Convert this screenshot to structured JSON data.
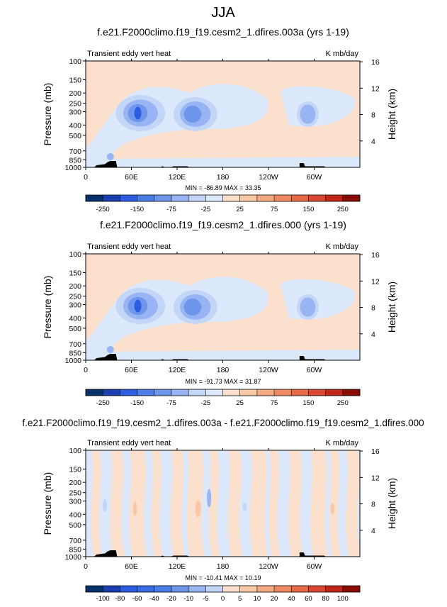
{
  "page_title": "JJA",
  "colors": {
    "blue_scale": [
      "#08306b",
      "#1a3fb0",
      "#2d5de0",
      "#4a7de6",
      "#6e97ec",
      "#98b4f2",
      "#c3d6f8",
      "#dce8fb"
    ],
    "red_scale": [
      "#fbe1cd",
      "#f9c8a6",
      "#f4aa82",
      "#ee8b62",
      "#e66a45",
      "#d94830",
      "#c02718",
      "#8a0c06"
    ],
    "topo": "#000000",
    "background_field": "#fbe1cd"
  },
  "chart_data": [
    {
      "type": "heatmap",
      "title": "f.e21.F2000climo.f19_f19.cesm2_1.dfires.003a (yrs 1-19)",
      "left_label": "Transient eddy vert heat",
      "right_label": "K mb/day",
      "ylabel": "Pressure (mb)",
      "y2label": "Height (km)",
      "x_ticks": [
        "0",
        "60E",
        "120E",
        "180",
        "120W",
        "60W"
      ],
      "y_ticks": [
        "100",
        "150",
        "200",
        "250",
        "300",
        "400",
        "500",
        "700",
        "850",
        "1000"
      ],
      "y2_ticks": [
        "16",
        "12",
        "8",
        "4"
      ],
      "stats": "MIN = -86.89   MAX = 33.35",
      "colorbar_labels": [
        "-250",
        "-150",
        "-75",
        "-25",
        "25",
        "75",
        "150",
        "250"
      ],
      "colorbar_colors": [
        "#08306b",
        "#1a3fb0",
        "#2d5de0",
        "#4a7de6",
        "#6e97ec",
        "#98b4f2",
        "#c3d6f8",
        "#dce8fb",
        "#fbe1cd",
        "#f9c8a6",
        "#f4aa82",
        "#ee8b62",
        "#e66a45",
        "#d94830",
        "#c02718",
        "#8a0c06"
      ]
    },
    {
      "type": "heatmap",
      "title": "f.e21.F2000climo.f19_f19.cesm2_1.dfires.000 (yrs 1-19)",
      "left_label": "Transient eddy vert heat",
      "right_label": "K mb/day",
      "ylabel": "Pressure (mb)",
      "y2label": "Height (km)",
      "x_ticks": [
        "0",
        "60E",
        "120E",
        "180",
        "120W",
        "60W"
      ],
      "y_ticks": [
        "100",
        "150",
        "200",
        "250",
        "300",
        "400",
        "500",
        "700",
        "850",
        "1000"
      ],
      "y2_ticks": [
        "16",
        "12",
        "8",
        "4"
      ],
      "stats": "MIN = -91.73   MAX = 31.87",
      "colorbar_labels": [
        "-250",
        "-150",
        "-75",
        "-25",
        "25",
        "75",
        "150",
        "250"
      ],
      "colorbar_colors": [
        "#08306b",
        "#1a3fb0",
        "#2d5de0",
        "#4a7de6",
        "#6e97ec",
        "#98b4f2",
        "#c3d6f8",
        "#dce8fb",
        "#fbe1cd",
        "#f9c8a6",
        "#f4aa82",
        "#ee8b62",
        "#e66a45",
        "#d94830",
        "#c02718",
        "#8a0c06"
      ]
    },
    {
      "type": "heatmap",
      "title": "f.e21.F2000climo.f19_f19.cesm2_1.dfires.003a - f.e21.F2000climo.f19_f19.cesm2_1.dfires.000",
      "left_label": "Transient eddy vert heat",
      "right_label": "K mb/day",
      "ylabel": "Pressure (mb)",
      "y2label": "Height (km)",
      "x_ticks": [
        "0",
        "60E",
        "120E",
        "180",
        "120W",
        "60W"
      ],
      "y_ticks": [
        "100",
        "150",
        "200",
        "250",
        "300",
        "400",
        "500",
        "700",
        "850",
        "1000"
      ],
      "y2_ticks": [
        "16",
        "12",
        "8",
        "4"
      ],
      "stats": "MIN = -10.41   MAX = 10.19",
      "colorbar_labels": [
        "-100",
        "-80",
        "-60",
        "-40",
        "-20",
        "-10",
        "-5",
        "0",
        "5",
        "10",
        "20",
        "40",
        "60",
        "80",
        "100"
      ],
      "colorbar_colors": [
        "#08306b",
        "#1a3fb0",
        "#2d5de0",
        "#3a6ce3",
        "#4a7de6",
        "#6e97ec",
        "#98b4f2",
        "#c3d6f8",
        "#fbe1cd",
        "#f9c8a6",
        "#f4aa82",
        "#ee8b62",
        "#e66a45",
        "#d94830",
        "#c02718",
        "#8a0c06"
      ]
    }
  ]
}
